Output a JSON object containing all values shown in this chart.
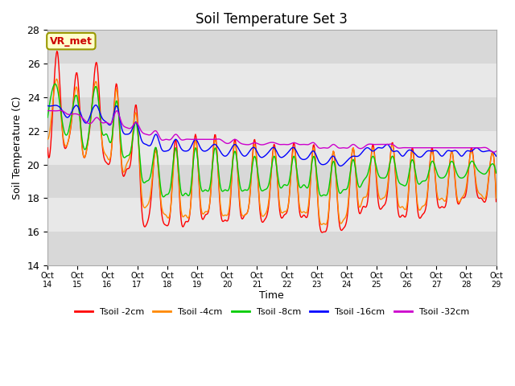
{
  "title": "Soil Temperature Set 3",
  "xlabel": "Time",
  "ylabel": "Soil Temperature (C)",
  "ylim": [
    14,
    28
  ],
  "yticks": [
    14,
    16,
    18,
    20,
    22,
    24,
    26,
    28
  ],
  "xtick_labels": [
    "Oct 14",
    "Oct 15",
    "Oct 16",
    "Oct 17",
    "Oct 18",
    "Oct 19",
    "Oct 20",
    "Oct 21",
    "Oct 22",
    "Oct 23",
    "Oct 24",
    "Oct 25",
    "Oct 26",
    "Oct 27",
    "Oct 28",
    "Oct 29"
  ],
  "legend_labels": [
    "Tsoil -2cm",
    "Tsoil -4cm",
    "Tsoil -8cm",
    "Tsoil -16cm",
    "Tsoil -32cm"
  ],
  "line_colors": [
    "#ff0000",
    "#ff8800",
    "#00cc00",
    "#0000ff",
    "#cc00cc"
  ],
  "annotation_text": "VR_met",
  "annotation_color": "#cc0000",
  "annotation_bg": "#ffffcc",
  "band_colors": [
    "#d8d8d8",
    "#e8e8e8"
  ],
  "grid_color": "#ffffff",
  "title_fontsize": 12,
  "series_2cm": [
    21.0,
    23.0,
    26.7,
    22.0,
    21.2,
    23.0,
    25.4,
    21.1,
    21.0,
    23.5,
    26.0,
    21.5,
    20.1,
    21.0,
    24.8,
    20.0,
    19.7,
    20.5,
    23.5,
    17.8,
    16.4,
    18.0,
    21.0,
    17.5,
    16.4,
    17.5,
    21.5,
    17.0,
    16.6,
    17.5,
    21.8,
    17.5,
    17.0,
    18.0,
    21.8,
    17.5,
    16.7,
    17.5,
    21.5,
    17.5,
    17.0,
    18.0,
    21.5,
    17.5,
    16.7,
    18.0,
    21.2,
    17.5,
    17.0,
    18.0,
    21.3,
    17.5,
    17.0,
    17.5,
    21.2,
    17.0,
    16.0,
    17.0,
    20.8,
    17.0,
    16.2,
    17.5,
    21.0,
    17.5,
    17.5,
    18.0,
    21.2,
    18.0,
    17.5,
    18.5,
    21.3,
    17.5,
    17.0,
    17.5,
    21.0,
    17.5,
    17.0,
    18.0,
    21.0,
    18.0,
    17.5,
    18.0,
    20.8,
    18.0,
    18.0,
    18.5,
    21.0,
    18.5,
    18.0,
    18.0,
    20.5,
    17.8
  ],
  "series_4cm": [
    21.5,
    23.5,
    25.0,
    22.0,
    21.2,
    23.0,
    24.5,
    21.0,
    21.0,
    23.5,
    24.8,
    21.5,
    20.5,
    21.0,
    24.5,
    20.2,
    20.0,
    21.0,
    23.0,
    18.5,
    17.5,
    18.5,
    20.8,
    17.8,
    17.0,
    17.5,
    21.0,
    17.5,
    17.0,
    17.5,
    21.5,
    17.8,
    17.2,
    18.0,
    21.5,
    17.8,
    17.0,
    17.8,
    21.3,
    17.8,
    17.0,
    18.0,
    21.2,
    17.8,
    17.0,
    18.2,
    21.0,
    17.8,
    17.2,
    18.0,
    21.0,
    17.8,
    17.2,
    17.8,
    21.0,
    17.2,
    16.5,
    17.2,
    20.8,
    17.2,
    16.7,
    17.8,
    21.0,
    17.8,
    18.0,
    18.5,
    21.0,
    18.5,
    18.0,
    18.8,
    21.2,
    18.0,
    17.5,
    17.8,
    20.8,
    17.8,
    17.5,
    18.2,
    20.8,
    18.3,
    18.0,
    18.2,
    20.8,
    18.2,
    18.0,
    18.8,
    20.8,
    18.8,
    18.2,
    18.2,
    20.5,
    18.0
  ],
  "series_8cm": [
    22.8,
    24.5,
    24.5,
    22.5,
    21.8,
    23.2,
    24.0,
    21.5,
    21.2,
    23.5,
    24.5,
    22.0,
    21.8,
    21.5,
    23.8,
    21.0,
    20.5,
    21.0,
    22.5,
    19.5,
    19.0,
    19.5,
    21.0,
    18.5,
    18.2,
    18.8,
    21.0,
    18.5,
    18.3,
    18.5,
    21.0,
    18.8,
    18.5,
    18.8,
    21.0,
    18.8,
    18.5,
    18.8,
    20.8,
    18.8,
    18.5,
    18.8,
    20.5,
    18.8,
    18.5,
    19.0,
    20.5,
    18.8,
    18.8,
    19.0,
    20.5,
    18.8,
    18.8,
    18.8,
    20.5,
    18.5,
    18.2,
    18.5,
    20.2,
    18.5,
    18.5,
    18.8,
    20.3,
    18.8,
    19.0,
    19.5,
    20.5,
    19.5,
    19.2,
    19.5,
    20.5,
    19.2,
    18.8,
    19.0,
    20.3,
    19.0,
    19.0,
    19.2,
    20.2,
    19.5,
    19.2,
    19.5,
    20.2,
    19.5,
    19.2,
    19.5,
    20.2,
    19.8,
    19.5,
    19.5,
    20.0,
    19.5
  ],
  "series_16cm": [
    23.5,
    23.5,
    23.5,
    23.2,
    22.8,
    23.2,
    23.5,
    22.8,
    22.5,
    23.2,
    23.5,
    22.8,
    22.5,
    22.5,
    23.5,
    22.2,
    21.8,
    22.0,
    22.5,
    21.5,
    21.2,
    21.2,
    21.8,
    21.0,
    20.8,
    21.0,
    21.5,
    21.0,
    20.8,
    21.0,
    21.5,
    21.0,
    20.8,
    21.0,
    21.2,
    20.8,
    20.5,
    20.8,
    21.2,
    20.8,
    20.5,
    20.8,
    21.0,
    20.5,
    20.5,
    20.8,
    21.0,
    20.5,
    20.5,
    20.8,
    21.0,
    20.5,
    20.3,
    20.5,
    20.8,
    20.2,
    20.0,
    20.2,
    20.5,
    20.0,
    20.0,
    20.3,
    20.5,
    20.5,
    20.8,
    21.0,
    20.8,
    21.0,
    21.0,
    21.2,
    20.8,
    20.8,
    20.5,
    20.8,
    20.8,
    20.5,
    20.5,
    20.8,
    20.8,
    20.8,
    20.5,
    20.8,
    20.8,
    20.8,
    20.5,
    20.8,
    20.8,
    21.0,
    20.8,
    20.8,
    20.8,
    20.5
  ],
  "series_32cm": [
    23.2,
    23.2,
    23.2,
    23.2,
    23.0,
    23.0,
    23.0,
    22.8,
    22.5,
    22.5,
    22.8,
    22.5,
    22.5,
    22.5,
    23.2,
    22.5,
    22.2,
    22.2,
    22.5,
    22.0,
    21.8,
    21.8,
    22.0,
    21.5,
    21.5,
    21.5,
    21.8,
    21.5,
    21.5,
    21.5,
    21.5,
    21.5,
    21.5,
    21.5,
    21.5,
    21.5,
    21.3,
    21.3,
    21.5,
    21.3,
    21.2,
    21.2,
    21.3,
    21.2,
    21.2,
    21.3,
    21.3,
    21.2,
    21.2,
    21.2,
    21.3,
    21.2,
    21.2,
    21.2,
    21.3,
    21.0,
    21.0,
    21.0,
    21.2,
    21.0,
    21.0,
    21.0,
    21.2,
    21.0,
    21.0,
    21.2,
    21.2,
    21.2,
    21.2,
    21.2,
    21.2,
    21.0,
    21.0,
    21.0,
    21.0,
    21.0,
    21.0,
    21.0,
    21.0,
    21.0,
    21.0,
    21.0,
    21.0,
    21.0,
    21.0,
    21.0,
    21.0,
    21.0,
    21.0,
    21.0,
    20.8,
    20.8
  ]
}
